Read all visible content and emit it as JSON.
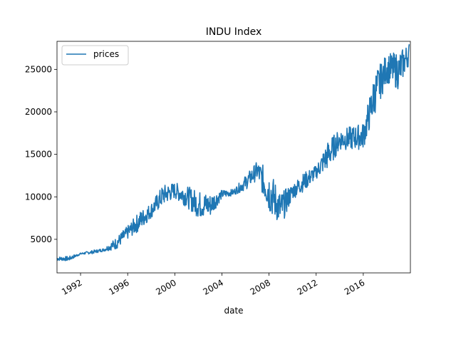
{
  "chart_data": {
    "type": "line",
    "title": "INDU Index",
    "xlabel": "date",
    "ylabel": "",
    "legend": {
      "entries": [
        "prices"
      ],
      "placement": "top-left"
    },
    "grid": false,
    "color": "#1f77b4",
    "xlim": [
      1990.0,
      2020.0
    ],
    "ylim": [
      1050,
      28300
    ],
    "x_ticks": [
      1992,
      1996,
      2000,
      2004,
      2008,
      2012,
      2016
    ],
    "x_tick_labels": [
      "1992",
      "1996",
      "2000",
      "2004",
      "2008",
      "2012",
      "2016"
    ],
    "y_ticks": [
      5000,
      10000,
      15000,
      20000,
      25000
    ],
    "y_tick_labels": [
      "5000",
      "10000",
      "15000",
      "20000",
      "25000"
    ],
    "series": [
      {
        "name": "prices",
        "band": [
          {
            "x": 1990.0,
            "low": 2500,
            "high": 2950
          },
          {
            "x": 1991.0,
            "low": 2450,
            "high": 3000
          },
          {
            "x": 1992.0,
            "low": 3200,
            "high": 3400
          },
          {
            "x": 1993.0,
            "low": 3300,
            "high": 3700
          },
          {
            "x": 1994.0,
            "low": 3600,
            "high": 3950
          },
          {
            "x": 1995.0,
            "low": 3800,
            "high": 5200
          },
          {
            "x": 1996.0,
            "low": 5000,
            "high": 6600
          },
          {
            "x": 1997.0,
            "low": 6000,
            "high": 8300
          },
          {
            "x": 1998.0,
            "low": 7500,
            "high": 9300
          },
          {
            "x": 1999.0,
            "low": 9000,
            "high": 11400
          },
          {
            "x": 2000.0,
            "low": 9800,
            "high": 11700
          },
          {
            "x": 2001.0,
            "low": 8800,
            "high": 11300
          },
          {
            "x": 2002.0,
            "low": 7500,
            "high": 10700
          },
          {
            "x": 2003.0,
            "low": 7600,
            "high": 10400
          },
          {
            "x": 2004.0,
            "low": 9800,
            "high": 10800
          },
          {
            "x": 2005.0,
            "low": 10200,
            "high": 10900
          },
          {
            "x": 2006.0,
            "low": 10800,
            "high": 12500
          },
          {
            "x": 2007.0,
            "low": 12000,
            "high": 14200
          },
          {
            "x": 2008.0,
            "low": 8100,
            "high": 13300
          },
          {
            "x": 2009.0,
            "low": 6500,
            "high": 10500
          },
          {
            "x": 2010.0,
            "low": 9700,
            "high": 11600
          },
          {
            "x": 2011.0,
            "low": 10700,
            "high": 12900
          },
          {
            "x": 2012.0,
            "low": 12100,
            "high": 13700
          },
          {
            "x": 2013.0,
            "low": 13200,
            "high": 16600
          },
          {
            "x": 2014.0,
            "low": 15500,
            "high": 18000
          },
          {
            "x": 2015.0,
            "low": 15500,
            "high": 18300
          },
          {
            "x": 2016.0,
            "low": 15600,
            "high": 18700
          },
          {
            "x": 2017.0,
            "low": 19800,
            "high": 24700
          },
          {
            "x": 2018.0,
            "low": 23400,
            "high": 26900
          },
          {
            "x": 2019.0,
            "low": 22600,
            "high": 27000
          },
          {
            "x": 2019.9,
            "low": 25600,
            "high": 28200
          }
        ]
      }
    ]
  }
}
